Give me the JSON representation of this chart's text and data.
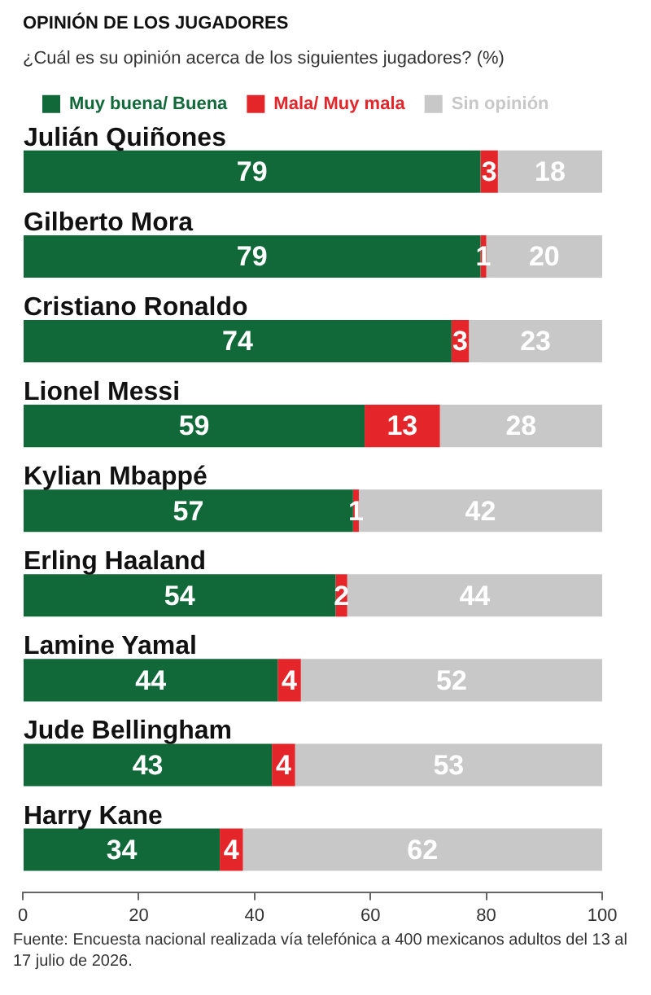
{
  "chart_data": {
    "type": "bar",
    "orientation": "horizontal",
    "stacked": true,
    "title": "OPINIÓN DE LOS JUGADORES",
    "subtitle": "¿Cuál es su opinión acerca de los siguientes jugadores? (%)",
    "categories": [
      "Julián Quiñones",
      "Gilberto Mora",
      "Cristiano Ronaldo",
      "Lionel Messi",
      "Kylian Mbappé",
      "Erling Haaland",
      "Lamine Yamal",
      "Jude Bellingham",
      "Harry Kane"
    ],
    "series": [
      {
        "name": "Muy buena/ Buena",
        "color": "#11693a",
        "values": [
          79,
          79,
          74,
          59,
          57,
          54,
          44,
          43,
          34
        ]
      },
      {
        "name": "Mala/ Muy mala",
        "color": "#e4262b",
        "values": [
          3,
          1,
          3,
          13,
          1,
          2,
          4,
          4,
          4
        ]
      },
      {
        "name": "Sin opinión",
        "color": "#c8c8c8",
        "values": [
          18,
          20,
          23,
          28,
          42,
          44,
          52,
          53,
          62
        ]
      }
    ],
    "xlim": [
      0,
      100
    ],
    "xticks": [
      0,
      20,
      40,
      60,
      80,
      100
    ],
    "legend": "top left",
    "data_labels": true,
    "annotations": [
      "Fuente: Encuesta nacional realizada vía telefónica a 400 mexicanos adultos del 13 al 17 julio de 2026."
    ]
  }
}
